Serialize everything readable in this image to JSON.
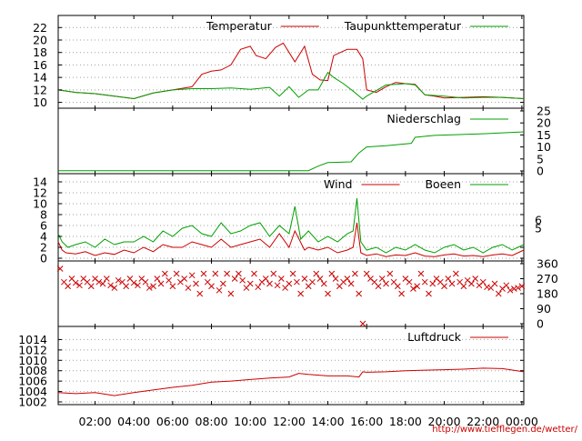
{
  "colors": {
    "red": "#cc0000",
    "green": "#00a000",
    "brown": "#8b5a2b",
    "grid": "#a0a0a0"
  },
  "footer_url": "http://www.tiefflegen.de/wetter/",
  "x_axis": {
    "tick_labels": [
      "02:00",
      "04:00",
      "06:00",
      "08:00",
      "10:00",
      "12:00",
      "14:00",
      "16:00",
      "18:00",
      "20:00",
      "22:00",
      "00:00"
    ],
    "tick_hours": [
      2,
      4,
      6,
      8,
      10,
      12,
      14,
      16,
      18,
      20,
      22,
      24
    ],
    "range_hours": [
      0.1,
      24.1
    ]
  },
  "chart_data": [
    {
      "type": "line",
      "ylim": [
        9.5,
        23.5
      ],
      "yticks": [
        10,
        12,
        14,
        16,
        18,
        20,
        22
      ],
      "grid": true,
      "legend_placement": "top",
      "series": [
        {
          "name": "Temperatur",
          "color": "#cc0000",
          "x": [
            0.1,
            1,
            2,
            3,
            4,
            5,
            6,
            7,
            7.5,
            8,
            8.5,
            9,
            9.5,
            10,
            10.3,
            10.8,
            11.3,
            11.7,
            12,
            12.3,
            12.8,
            13.2,
            13.6,
            14,
            14.3,
            15,
            15.5,
            15.8,
            16,
            16.5,
            17,
            17.5,
            18,
            18.5,
            19,
            19.5,
            20,
            21,
            22,
            23,
            24.1
          ],
          "y": [
            12,
            11.6,
            11.4,
            11,
            10.6,
            11.5,
            12,
            12.5,
            14.5,
            15,
            15.2,
            16,
            18.5,
            19,
            17.5,
            17,
            18.8,
            19.5,
            18,
            16.5,
            19,
            14.5,
            13.6,
            13.5,
            17.5,
            18.5,
            18.5,
            17,
            12,
            11.6,
            12.5,
            13.2,
            13,
            12.9,
            11.2,
            11,
            10.7,
            10.8,
            10.9,
            10.8,
            10.6
          ]
        },
        {
          "name": "Taupunkttemperatur",
          "color": "#00a000",
          "x": [
            0.1,
            1,
            2,
            3,
            4,
            5,
            6,
            7,
            8,
            9,
            10,
            11,
            11.5,
            12,
            12.5,
            13,
            13.5,
            14,
            14.3,
            14.8,
            15.3,
            15.8,
            16,
            17,
            17.5,
            18,
            18.5,
            19,
            20,
            21,
            22,
            23,
            24.1
          ],
          "y": [
            12,
            11.6,
            11.4,
            11,
            10.6,
            11.5,
            12,
            12.2,
            12.2,
            12.3,
            12.1,
            12.4,
            11,
            12.5,
            10.8,
            12,
            12,
            14.8,
            14,
            13,
            11.8,
            10.5,
            11,
            12.8,
            12.9,
            13,
            12.8,
            11.2,
            11,
            10.7,
            10.8,
            10.8,
            10.6
          ]
        }
      ]
    },
    {
      "type": "line",
      "ylim": [
        0,
        25
      ],
      "yticks": [
        0,
        5,
        10,
        15,
        20,
        25
      ],
      "y_axis_side": "right",
      "grid": false,
      "legend_placement": "top",
      "series": [
        {
          "name": "Niederschlag",
          "color": "#00a000",
          "x": [
            0.1,
            13,
            13.5,
            14,
            14.5,
            15.2,
            15.6,
            16,
            17,
            18.3,
            18.5,
            19.5,
            22,
            24.1
          ],
          "y": [
            0.1,
            0.1,
            2,
            3.5,
            3.6,
            3.8,
            7.5,
            10,
            10.5,
            11.5,
            14,
            14.8,
            15.5,
            16.3
          ]
        }
      ]
    },
    {
      "type": "line",
      "ylim": [
        0,
        15
      ],
      "yticks": [
        0,
        2,
        4,
        6,
        8,
        10,
        12,
        14
      ],
      "y2_tick_labels": [
        "5",
        "6"
      ],
      "y2_tick_values": [
        5.5,
        7
      ],
      "grid": true,
      "legend_placement": "top",
      "series": [
        {
          "name": "Wind",
          "color": "#cc0000",
          "x": [
            0.1,
            0.3,
            0.5,
            1,
            1.5,
            2,
            2.5,
            3,
            3.5,
            4,
            4.5,
            5,
            5.5,
            6,
            6.5,
            7,
            7.5,
            8,
            8.5,
            9,
            9.5,
            10,
            10.5,
            11,
            11.5,
            12,
            12.3,
            12.8,
            13,
            13.5,
            14,
            14.5,
            15,
            15.3,
            15.5,
            15.7,
            16,
            16.5,
            17,
            17.5,
            18,
            18.5,
            19,
            19.5,
            20,
            20.5,
            21,
            21.5,
            22,
            22.5,
            23,
            23.5,
            24.1
          ],
          "y": [
            3,
            1.5,
            1,
            0.8,
            1.2,
            0.5,
            1,
            0.7,
            1.5,
            1,
            2,
            1.2,
            2.5,
            2,
            2,
            3,
            2.5,
            2,
            3.5,
            2,
            2.5,
            3,
            3.5,
            2,
            4.5,
            2,
            5,
            1.5,
            2,
            1.5,
            2,
            1,
            1.5,
            2,
            6.5,
            1,
            0.5,
            0.8,
            0.3,
            0.6,
            0.5,
            1,
            0.4,
            0.3,
            0.6,
            0.8,
            0.4,
            0.5,
            0.3,
            0.6,
            0.8,
            0.5,
            1.5
          ]
        },
        {
          "name": "Boeen",
          "color": "#00a000",
          "x": [
            0.1,
            0.3,
            0.6,
            1,
            1.5,
            2,
            2.5,
            3,
            3.5,
            4,
            4.5,
            5,
            5.5,
            6,
            6.5,
            7,
            7.5,
            8,
            8.5,
            9,
            9.5,
            10,
            10.5,
            11,
            11.5,
            12,
            12.3,
            12.6,
            13,
            13.5,
            14,
            14.5,
            15,
            15.3,
            15.5,
            15.7,
            16,
            16.5,
            17,
            17.5,
            18,
            18.5,
            19,
            19.5,
            20,
            20.5,
            21,
            21.5,
            22,
            22.5,
            23,
            23.5,
            24.1
          ],
          "y": [
            4.5,
            3,
            2,
            2.5,
            3,
            2,
            3.5,
            2.5,
            3,
            3,
            4,
            3,
            5,
            4,
            5.5,
            6,
            4.5,
            4,
            6.5,
            4.5,
            5,
            6,
            6.5,
            4,
            6,
            4.5,
            9.5,
            3.5,
            5,
            3,
            4,
            3,
            4.5,
            5,
            11,
            3,
            1.5,
            2,
            1,
            2,
            1.5,
            2.5,
            1.5,
            1,
            2,
            2.5,
            1.5,
            2,
            1,
            2,
            2.5,
            1.5,
            2.5
          ]
        }
      ]
    },
    {
      "type": "scatter",
      "marker": "x",
      "ylim": [
        0,
        360
      ],
      "yticks": [
        0,
        90,
        180,
        270,
        360
      ],
      "y_axis_side": "right",
      "grid": false,
      "series": [
        {
          "color": "#cc0000",
          "x": [
            0.2,
            0.4,
            0.6,
            0.8,
            1,
            1.2,
            1.4,
            1.6,
            1.8,
            2,
            2.2,
            2.4,
            2.6,
            2.8,
            3,
            3.2,
            3.4,
            3.6,
            3.8,
            4,
            4.2,
            4.4,
            4.6,
            4.8,
            5,
            5.2,
            5.4,
            5.6,
            5.8,
            6,
            6.2,
            6.4,
            6.6,
            6.8,
            7,
            7.2,
            7.4,
            7.6,
            7.8,
            8,
            8.2,
            8.4,
            8.6,
            8.8,
            9,
            9.2,
            9.4,
            9.6,
            9.8,
            10,
            10.2,
            10.4,
            10.6,
            10.8,
            11,
            11.2,
            11.4,
            11.6,
            11.8,
            12,
            12.2,
            12.4,
            12.6,
            12.8,
            13,
            13.2,
            13.4,
            13.6,
            13.8,
            14,
            14.2,
            14.4,
            14.6,
            14.8,
            15,
            15.2,
            15.4,
            15.6,
            15.8,
            16,
            16.2,
            16.4,
            16.6,
            16.8,
            17,
            17.2,
            17.4,
            17.6,
            17.8,
            18,
            18.2,
            18.4,
            18.6,
            18.8,
            19,
            19.2,
            19.4,
            19.6,
            19.8,
            20,
            20.2,
            20.4,
            20.6,
            20.8,
            21,
            21.2,
            21.4,
            21.6,
            21.8,
            22,
            22.2,
            22.4,
            22.6,
            22.8,
            23,
            23.2,
            23.4,
            23.6,
            23.8,
            24
          ],
          "y": [
            330,
            250,
            225,
            270,
            245,
            230,
            270,
            250,
            225,
            270,
            250,
            240,
            270,
            230,
            215,
            260,
            250,
            225,
            270,
            245,
            230,
            270,
            250,
            215,
            225,
            270,
            240,
            300,
            260,
            225,
            300,
            250,
            270,
            215,
            290,
            240,
            180,
            300,
            250,
            225,
            300,
            200,
            240,
            300,
            180,
            270,
            300,
            260,
            215,
            240,
            300,
            220,
            250,
            270,
            240,
            300,
            230,
            270,
            215,
            240,
            300,
            250,
            180,
            270,
            225,
            250,
            300,
            270,
            240,
            180,
            300,
            270,
            225,
            250,
            270,
            240,
            300,
            180,
            0,
            300,
            270,
            250,
            225,
            270,
            240,
            300,
            250,
            225,
            180,
            270,
            250,
            210,
            225,
            300,
            250,
            180,
            240,
            270,
            250,
            225,
            270,
            240,
            300,
            250,
            225,
            260,
            240,
            270,
            230,
            250,
            220,
            215,
            240,
            180,
            210,
            230,
            200,
            210,
            215,
            225
          ]
        }
      ]
    },
    {
      "type": "line",
      "ylim": [
        1002,
        1016
      ],
      "yticks": [
        1002,
        1004,
        1006,
        1008,
        1010,
        1012,
        1014
      ],
      "grid": true,
      "legend_placement": "top",
      "series": [
        {
          "name": "Luftdruck",
          "color": "#cc0000",
          "x": [
            0.1,
            1,
            2,
            3,
            4,
            5,
            6,
            7,
            8,
            9,
            10,
            11,
            12,
            12.5,
            13,
            14,
            15,
            15.6,
            15.8,
            16,
            17,
            18,
            19,
            20,
            21,
            22,
            23,
            24.1
          ],
          "y": [
            1003.8,
            1003.6,
            1003.8,
            1003.2,
            1003.8,
            1004.3,
            1004.8,
            1005.2,
            1005.8,
            1006,
            1006.3,
            1006.6,
            1006.8,
            1007.5,
            1007.3,
            1007,
            1007,
            1006.8,
            1007.8,
            1007.7,
            1007.8,
            1008,
            1008.1,
            1008.2,
            1008.3,
            1008.5,
            1008.4,
            1007.8
          ]
        }
      ]
    }
  ]
}
